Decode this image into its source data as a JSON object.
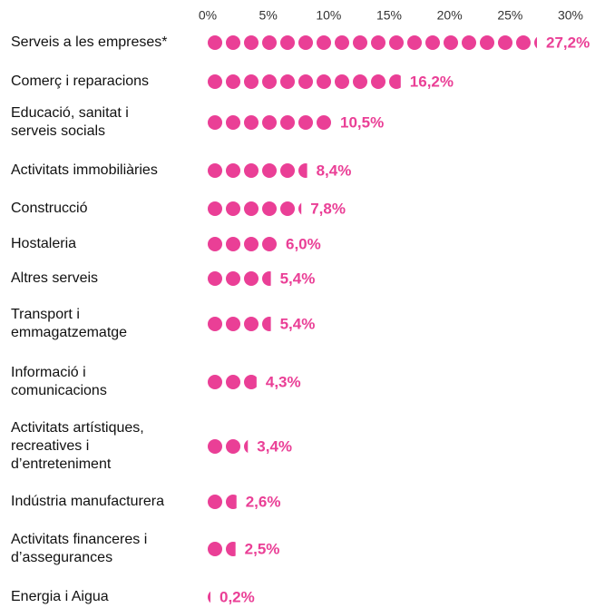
{
  "chart_data": {
    "type": "dot_bar",
    "categories": [
      "Serveis a les empreses*",
      "Comerç i reparacions",
      "Educació, sanitat i\nserveis socials",
      "Activitats immobiliàries",
      "Construcció",
      "Hostaleria",
      "Altres serveis",
      "Transport i\nemmagatzematge",
      "Informació i\ncomunicacions",
      "Activitats artístiques,\nrecreatives i\nd’entreteniment",
      "Indústria manufacturera",
      "Activitats financeres i\nd’assegurances",
      "Energia i Aigua"
    ],
    "values": [
      27.2,
      16.2,
      10.5,
      8.4,
      7.8,
      6.0,
      5.4,
      5.4,
      4.3,
      3.4,
      2.6,
      2.5,
      0.2
    ],
    "value_labels": [
      "27,2%",
      "16,2%",
      "10,5%",
      "8,4%",
      "7,8%",
      "6,0%",
      "5,4%",
      "5,4%",
      "4,3%",
      "3,4%",
      "2,6%",
      "2,5%",
      "0,2%"
    ],
    "color": "#ea3f96",
    "xlim": [
      0,
      30
    ],
    "xticks": [
      {
        "value": 0,
        "label": "0%"
      },
      {
        "value": 5,
        "label": "5%"
      },
      {
        "value": 10,
        "label": "10%"
      },
      {
        "value": 15,
        "label": "15%"
      },
      {
        "value": 20,
        "label": "20%"
      },
      {
        "value": 25,
        "label": "25%"
      },
      {
        "value": 30,
        "label": "30%"
      }
    ]
  }
}
